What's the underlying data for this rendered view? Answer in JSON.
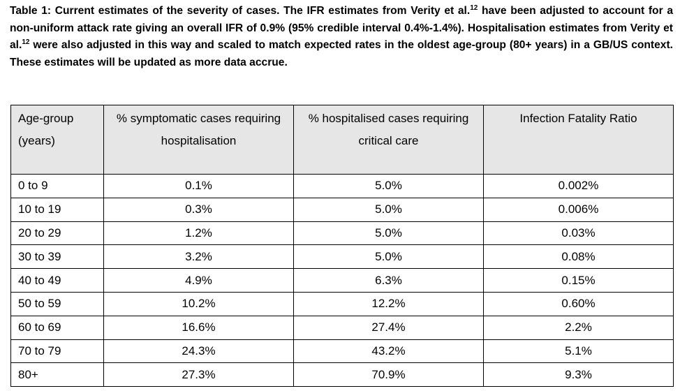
{
  "caption": {
    "part1": "Table 1: Current estimates of the severity of cases. The IFR estimates from Verity et al.",
    "ref1": "12",
    "part2": " have been adjusted to account for a non-uniform attack rate giving an overall IFR of 0.9% (95% credible interval 0.4%-1.4%). Hospitalisation estimates from Verity et al.",
    "ref2": "12",
    "part3": " were also adjusted in this way and scaled to match expected rates in the oldest age-group (80+ years) in a GB/US context. These estimates will be updated as more data accrue."
  },
  "table": {
    "headers": [
      "Age-group (years)",
      "% symptomatic cases requiring hospitalisation",
      "% hospitalised cases requiring critical care",
      "Infection Fatality Ratio"
    ],
    "rows": [
      [
        "0 to 9",
        "0.1%",
        "5.0%",
        "0.002%"
      ],
      [
        "10 to 19",
        "0.3%",
        "5.0%",
        "0.006%"
      ],
      [
        "20 to 29",
        "1.2%",
        "5.0%",
        "0.03%"
      ],
      [
        "30 to 39",
        "3.2%",
        "5.0%",
        "0.08%"
      ],
      [
        "40 to 49",
        "4.9%",
        "6.3%",
        "0.15%"
      ],
      [
        "50 to 59",
        "10.2%",
        "12.2%",
        "0.60%"
      ],
      [
        "60 to 69",
        "16.6%",
        "27.4%",
        "2.2%"
      ],
      [
        "70 to 79",
        "24.3%",
        "43.2%",
        "5.1%"
      ],
      [
        "80+",
        "27.3%",
        "70.9%",
        "9.3%"
      ]
    ]
  },
  "colors": {
    "header_background": "#e7e6e6",
    "border": "#000000"
  }
}
